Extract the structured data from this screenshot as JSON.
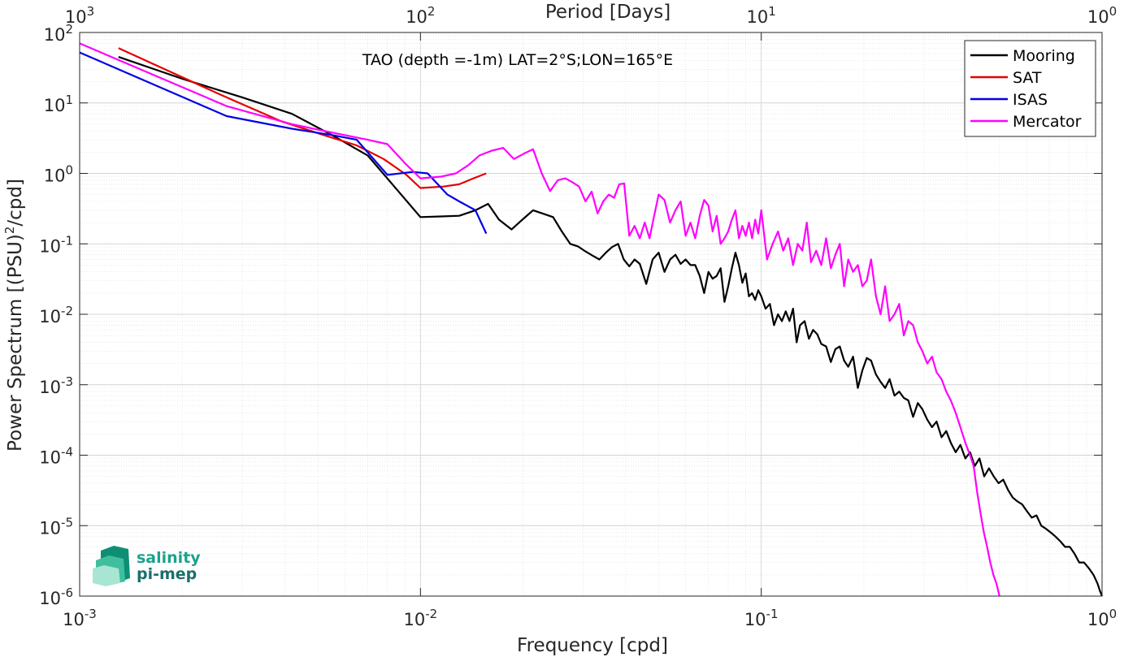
{
  "chart_data": {
    "type": "line",
    "x_scale": "log",
    "y_scale": "log",
    "xlabel": "Frequency [cpd]",
    "ylabel": "Power Spectrum [(PSU)",
    "ylabel_sup": "2",
    "ylabel_tail": "/cpd]",
    "top_axis_label": "Period [Days]",
    "xlim": [
      0.001,
      1
    ],
    "ylim": [
      1e-06,
      100
    ],
    "x_ticks": [
      {
        "mant": "10",
        "exp": "-3"
      },
      {
        "mant": "10",
        "exp": "-2"
      },
      {
        "mant": "10",
        "exp": "-1"
      },
      {
        "mant": "10",
        "exp": "0"
      }
    ],
    "top_ticks": [
      {
        "mant": "10",
        "exp": "3"
      },
      {
        "mant": "10",
        "exp": "2"
      },
      {
        "mant": "10",
        "exp": "1"
      },
      {
        "mant": "10",
        "exp": "0"
      }
    ],
    "y_ticks": [
      {
        "mant": "10",
        "exp": "-6"
      },
      {
        "mant": "10",
        "exp": "-5"
      },
      {
        "mant": "10",
        "exp": "-4"
      },
      {
        "mant": "10",
        "exp": "-3"
      },
      {
        "mant": "10",
        "exp": "-2"
      },
      {
        "mant": "10",
        "exp": "-1"
      },
      {
        "mant": "10",
        "exp": "0"
      },
      {
        "mant": "10",
        "exp": "1"
      },
      {
        "mant": "10",
        "exp": "2"
      }
    ],
    "grid": true,
    "minor_grid": true,
    "legend_position": "top-right",
    "annotation": "TAO (depth =-1m) LAT=2°S;LON=165°E",
    "series": [
      {
        "name": "Mooring",
        "color": "#000000",
        "x": [
          0.0013,
          0.002,
          0.003,
          0.0042,
          0.0055,
          0.007,
          0.0085,
          0.01,
          0.0115,
          0.013,
          0.0145,
          0.0158,
          0.017,
          0.0185,
          0.0199,
          0.0214,
          0.0228,
          0.0245,
          0.026,
          0.0275,
          0.029,
          0.0305,
          0.032,
          0.0335,
          0.035,
          0.0365,
          0.038,
          0.0395,
          0.041,
          0.0425,
          0.044,
          0.046,
          0.048,
          0.05,
          0.052,
          0.054,
          0.056,
          0.058,
          0.06,
          0.062,
          0.064,
          0.066,
          0.068,
          0.07,
          0.072,
          0.074,
          0.076,
          0.078,
          0.08,
          0.082,
          0.084,
          0.086,
          0.088,
          0.09,
          0.092,
          0.094,
          0.096,
          0.098,
          0.1,
          0.103,
          0.106,
          0.109,
          0.112,
          0.115,
          0.118,
          0.121,
          0.124,
          0.127,
          0.13,
          0.134,
          0.138,
          0.142,
          0.146,
          0.15,
          0.155,
          0.16,
          0.165,
          0.17,
          0.175,
          0.18,
          0.186,
          0.192,
          0.198,
          0.204,
          0.21,
          0.217,
          0.224,
          0.231,
          0.238,
          0.246,
          0.254,
          0.262,
          0.27,
          0.279,
          0.288,
          0.297,
          0.307,
          0.317,
          0.327,
          0.338,
          0.349,
          0.36,
          0.372,
          0.384,
          0.397,
          0.41,
          0.423,
          0.437,
          0.451,
          0.466,
          0.481,
          0.497,
          0.513,
          0.53,
          0.547,
          0.565,
          0.583,
          0.602,
          0.622,
          0.642,
          0.663,
          0.685,
          0.707,
          0.73,
          0.754,
          0.779,
          0.804,
          0.83,
          0.857,
          0.885,
          0.914,
          0.944,
          0.97,
          0.985,
          1.0
        ],
        "y": [
          45,
          22,
          12,
          7,
          3.5,
          1.8,
          0.6,
          0.24,
          0.245,
          0.25,
          0.3,
          0.37,
          0.22,
          0.16,
          0.22,
          0.3,
          0.27,
          0.24,
          0.15,
          0.1,
          0.092,
          0.078,
          0.068,
          0.06,
          0.075,
          0.09,
          0.1,
          0.06,
          0.048,
          0.06,
          0.052,
          0.027,
          0.06,
          0.075,
          0.04,
          0.06,
          0.07,
          0.052,
          0.06,
          0.05,
          0.05,
          0.035,
          0.02,
          0.04,
          0.032,
          0.035,
          0.045,
          0.015,
          0.025,
          0.045,
          0.075,
          0.05,
          0.028,
          0.038,
          0.018,
          0.02,
          0.016,
          0.022,
          0.018,
          0.012,
          0.014,
          0.007,
          0.01,
          0.008,
          0.011,
          0.008,
          0.012,
          0.004,
          0.007,
          0.008,
          0.0045,
          0.006,
          0.0052,
          0.0038,
          0.0035,
          0.0021,
          0.0032,
          0.0035,
          0.0022,
          0.0018,
          0.0025,
          0.0009,
          0.0016,
          0.0024,
          0.0022,
          0.0014,
          0.0011,
          0.0009,
          0.0012,
          0.0007,
          0.0008,
          0.00065,
          0.0006,
          0.00035,
          0.00055,
          0.00045,
          0.00032,
          0.00025,
          0.0003,
          0.00018,
          0.00022,
          0.00015,
          0.00011,
          0.00014,
          9e-05,
          0.00011,
          7e-05,
          9e-05,
          5e-05,
          6.5e-05,
          5e-05,
          4e-05,
          4.5e-05,
          3.2e-05,
          2.5e-05,
          2.2e-05,
          2e-05,
          1.6e-05,
          1.3e-05,
          1.4e-05,
          1e-05,
          9e-06,
          8e-06,
          7e-06,
          6e-06,
          5e-06,
          5e-06,
          4e-06,
          3e-06,
          3e-06,
          2.5e-06,
          2e-06,
          1.5e-06,
          1.2e-06,
          1e-06
        ]
      },
      {
        "name": "SAT",
        "color": "#e60000",
        "x": [
          0.0013,
          0.0026,
          0.0039,
          0.0052,
          0.0065,
          0.0078,
          0.0091,
          0.01,
          0.0117,
          0.013,
          0.0143,
          0.0156
        ],
        "y": [
          60,
          13,
          5.5,
          3.5,
          2.5,
          1.6,
          0.95,
          0.62,
          0.65,
          0.7,
          0.85,
          1.0
        ]
      },
      {
        "name": "ISAS",
        "color": "#0000e6",
        "x": [
          0.001,
          0.0027,
          0.0042,
          0.0055,
          0.0065,
          0.008,
          0.0095,
          0.0105,
          0.012,
          0.013,
          0.0145,
          0.0156
        ],
        "y": [
          52,
          6.5,
          4.3,
          3.5,
          3.0,
          0.95,
          1.05,
          1.0,
          0.5,
          0.4,
          0.3,
          0.14
        ]
      },
      {
        "name": "Mercator",
        "color": "#ff00ff",
        "x": [
          0.001,
          0.0027,
          0.0042,
          0.0055,
          0.007,
          0.008,
          0.009,
          0.01,
          0.0115,
          0.0127,
          0.0138,
          0.0149,
          0.0162,
          0.0175,
          0.0188,
          0.0201,
          0.0214,
          0.0227,
          0.024,
          0.0253,
          0.0266,
          0.0279,
          0.0292,
          0.0305,
          0.0318,
          0.0331,
          0.0344,
          0.0357,
          0.037,
          0.0383,
          0.0396,
          0.041,
          0.0425,
          0.044,
          0.0455,
          0.047,
          0.0485,
          0.05,
          0.052,
          0.054,
          0.056,
          0.058,
          0.06,
          0.062,
          0.064,
          0.066,
          0.068,
          0.07,
          0.072,
          0.074,
          0.076,
          0.078,
          0.08,
          0.082,
          0.084,
          0.086,
          0.088,
          0.09,
          0.092,
          0.094,
          0.096,
          0.098,
          0.1,
          0.104,
          0.108,
          0.112,
          0.116,
          0.12,
          0.124,
          0.128,
          0.132,
          0.136,
          0.14,
          0.145,
          0.15,
          0.155,
          0.16,
          0.165,
          0.17,
          0.175,
          0.18,
          0.186,
          0.192,
          0.198,
          0.204,
          0.21,
          0.217,
          0.224,
          0.231,
          0.238,
          0.246,
          0.254,
          0.262,
          0.27,
          0.279,
          0.288,
          0.297,
          0.307,
          0.317,
          0.327,
          0.338,
          0.349,
          0.36,
          0.372,
          0.384,
          0.397,
          0.41,
          0.42,
          0.43,
          0.44,
          0.45,
          0.46,
          0.47,
          0.48,
          0.49,
          0.5
        ],
        "y": [
          70,
          9,
          5,
          3.8,
          3.0,
          2.6,
          1.4,
          0.85,
          0.9,
          1.0,
          1.3,
          1.8,
          2.1,
          2.3,
          1.6,
          1.9,
          2.2,
          1.0,
          0.56,
          0.8,
          0.85,
          0.75,
          0.65,
          0.4,
          0.55,
          0.27,
          0.4,
          0.5,
          0.45,
          0.7,
          0.72,
          0.13,
          0.18,
          0.12,
          0.2,
          0.12,
          0.25,
          0.5,
          0.42,
          0.2,
          0.3,
          0.4,
          0.13,
          0.2,
          0.12,
          0.25,
          0.42,
          0.35,
          0.15,
          0.25,
          0.1,
          0.12,
          0.15,
          0.22,
          0.3,
          0.12,
          0.18,
          0.13,
          0.2,
          0.12,
          0.22,
          0.14,
          0.3,
          0.06,
          0.1,
          0.15,
          0.08,
          0.12,
          0.05,
          0.1,
          0.08,
          0.2,
          0.055,
          0.08,
          0.05,
          0.12,
          0.045,
          0.07,
          0.1,
          0.025,
          0.06,
          0.04,
          0.05,
          0.025,
          0.03,
          0.06,
          0.018,
          0.01,
          0.025,
          0.008,
          0.01,
          0.014,
          0.005,
          0.008,
          0.007,
          0.004,
          0.003,
          0.002,
          0.0025,
          0.0015,
          0.0012,
          0.0008,
          0.0006,
          0.0004,
          0.00025,
          0.00015,
          0.0001,
          7e-05,
          3e-05,
          1.5e-05,
          8e-06,
          5e-06,
          3e-06,
          2e-06,
          1.5e-06,
          1e-06
        ]
      }
    ]
  },
  "legend_items": [
    "Mooring",
    "SAT",
    "ISAS",
    "Mercator"
  ],
  "logo": {
    "line1": "salinity",
    "line2": "pi-mep",
    "color": "#1ba38c"
  }
}
